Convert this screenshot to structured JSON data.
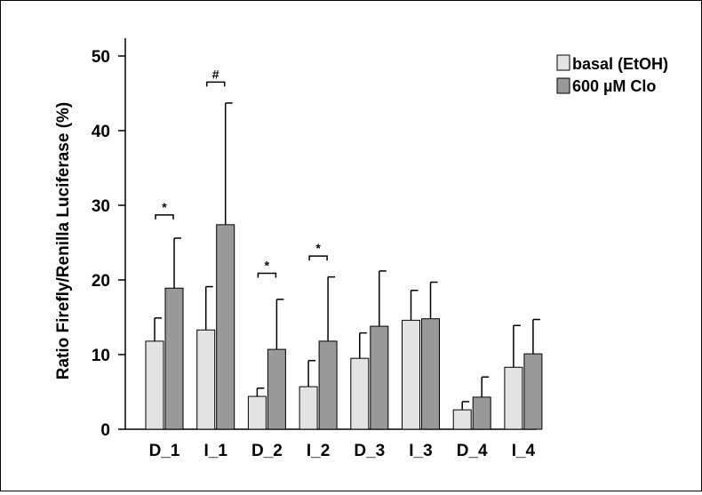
{
  "chart_data": {
    "type": "bar",
    "title": "",
    "xlabel": "",
    "ylabel": "Ratio Firefly/Renilla Luciferase (%)",
    "ylim": [
      0,
      50
    ],
    "yticks": [
      0,
      10,
      20,
      30,
      40,
      50
    ],
    "categories": [
      "D_1",
      "I_1",
      "D_2",
      "I_2",
      "D_3",
      "I_3",
      "D_4",
      "I_4"
    ],
    "series": [
      {
        "name": "basal (EtOH)",
        "color": "#e3e3e3",
        "values": [
          11.8,
          13.3,
          4.4,
          5.7,
          9.5,
          14.6,
          2.6,
          8.3
        ],
        "errors": [
          3.1,
          5.8,
          1.1,
          3.5,
          3.4,
          4.0,
          1.1,
          5.6
        ]
      },
      {
        "name": "600 µM Clo",
        "color": "#999999",
        "values": [
          18.9,
          27.4,
          10.7,
          11.8,
          13.8,
          14.8,
          4.3,
          10.1
        ],
        "errors": [
          6.7,
          16.3,
          6.7,
          8.6,
          7.4,
          4.9,
          2.7,
          4.6
        ]
      }
    ],
    "annotations": [
      {
        "category": "D_1",
        "text": "*",
        "y": 28.7
      },
      {
        "category": "I_1",
        "text": "#",
        "y": 46.5
      },
      {
        "category": "D_2",
        "text": "*",
        "y": 20.9
      },
      {
        "category": "I_2",
        "text": "*",
        "y": 23.2
      }
    ],
    "legend_position": "top-right",
    "grid": false
  }
}
